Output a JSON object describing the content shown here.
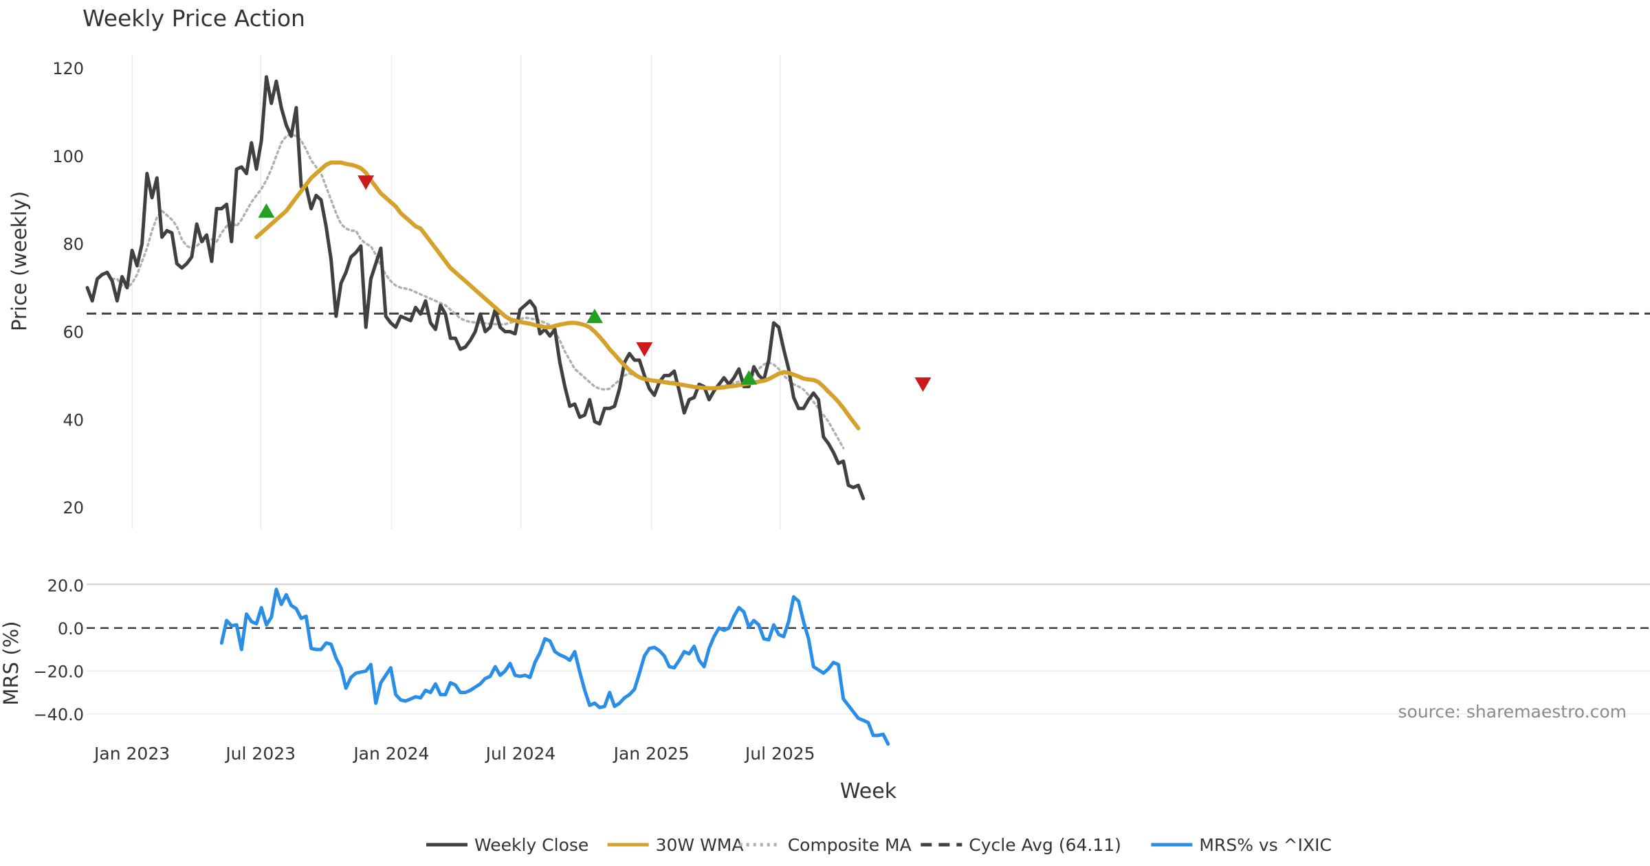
{
  "chart_data": [
    {
      "panel": "price",
      "type": "line",
      "title": "Weekly Price Action",
      "ylabel": "Price (weekly)",
      "xlabel": "Week",
      "ylim": [
        15,
        123
      ],
      "yticks": [
        20,
        40,
        60,
        80,
        100,
        120
      ],
      "grid": "vertical",
      "x_start": "2022-10-30",
      "x_step_days": 7,
      "cycle_avg": 64.11,
      "series": [
        {
          "name": "Weekly Close",
          "color": "#404040",
          "style": "solid",
          "start_week": 0,
          "values": [
            70,
            67,
            72,
            73,
            73.5,
            71.5,
            67,
            72.5,
            70,
            78.5,
            75,
            80,
            96,
            90.5,
            95,
            81.5,
            83,
            82.5,
            75.5,
            74.5,
            75.5,
            77,
            84.5,
            80.5,
            82,
            76,
            88,
            88,
            89,
            80.5,
            97,
            97.5,
            96,
            103,
            97,
            103.5,
            118,
            112,
            117,
            111,
            107,
            104.5,
            111,
            93,
            93,
            88,
            91,
            90,
            84,
            76.5,
            63.5,
            71,
            73.5,
            77,
            78,
            79.5,
            61,
            72,
            75.5,
            79,
            63.5,
            62,
            61,
            63.5,
            63,
            62.5,
            65.5,
            64,
            67,
            62,
            60.5,
            66,
            64,
            58.5,
            58.5,
            56,
            56.5,
            58,
            60,
            64,
            60,
            61,
            65,
            61,
            60,
            60,
            59.5,
            65,
            66,
            67,
            65.5,
            59.5,
            60.5,
            59,
            60.5,
            53,
            47.5,
            43,
            43.5,
            40.5,
            41,
            44.5,
            39.5,
            39,
            42.5,
            42.5,
            43,
            47,
            53,
            55,
            53.5,
            53.5,
            50,
            47,
            45.5,
            48.5,
            50,
            50,
            51,
            46.5,
            41.5,
            44.5,
            45,
            48,
            47.5,
            44.5,
            46.5,
            48,
            49.5,
            48,
            49.5,
            51.5,
            47.5,
            47.5,
            52,
            50,
            49,
            53.5,
            62,
            61,
            56,
            51.5,
            45,
            42.5,
            42.5,
            44.5,
            46,
            44.5,
            36,
            34.5,
            32.5,
            30,
            30.5,
            25,
            24.5,
            25,
            22
          ]
        },
        {
          "name": "30W WMA",
          "color": "#d4a12a",
          "style": "solid",
          "start_week": 34,
          "values": [
            81.5,
            82.5,
            83.5,
            84.5,
            85.5,
            86.5,
            87.5,
            89,
            90.5,
            92,
            93.5,
            95,
            96,
            97,
            98,
            98.5,
            98.5,
            98.5,
            98.2,
            98,
            97.7,
            97.2,
            96.2,
            94.5,
            93,
            91.5,
            90.5,
            89.5,
            88.5,
            87,
            86,
            85,
            84,
            83.5,
            82,
            80.5,
            79,
            77.5,
            76,
            74.5,
            73.5,
            72.5,
            71.5,
            70.5,
            69.5,
            68.5,
            67.5,
            66.5,
            65.5,
            64.5,
            63.5,
            62.8,
            62.5,
            62.2,
            62,
            61.8,
            61.5,
            61.3,
            61,
            61,
            61.3,
            61.6,
            61.8,
            62,
            62,
            61.8,
            61.5,
            61,
            60,
            58.8,
            57.5,
            56,
            54.8,
            53.5,
            52.3,
            51.2,
            50.3,
            49.6,
            49.2,
            49,
            48.8,
            48.7,
            48.5,
            48.3,
            48.2,
            48,
            47.8,
            47.6,
            47.4,
            47.3,
            47.2,
            47.1,
            47.1,
            47.2,
            47.3,
            47.5,
            47.6,
            47.8,
            48,
            48.2,
            48.4,
            48.6,
            48.8,
            49.2,
            49.8,
            50.4,
            50.8,
            50.6,
            50.2,
            49.8,
            49.3,
            49.1,
            49,
            48.5,
            47.5,
            46.3,
            45.2,
            44,
            42.6,
            41,
            39.5,
            38
          ]
        },
        {
          "name": "Composite MA",
          "color": "#b0b0b0",
          "style": "dotted",
          "start_week": 5,
          "values": [
            72,
            72,
            70.5,
            70,
            71,
            73,
            76,
            79,
            83,
            86,
            87.5,
            86.5,
            85.5,
            84,
            81,
            79.5,
            79,
            79.5,
            80.5,
            80.5,
            81,
            80.5,
            82.5,
            84,
            85,
            84,
            85.5,
            87.5,
            89.5,
            91,
            92.5,
            94.5,
            97,
            100,
            103,
            104.5,
            105,
            104.5,
            103.5,
            101.5,
            99,
            97.5,
            96,
            93,
            90,
            87,
            84.5,
            83.5,
            83,
            83,
            81,
            80,
            79.5,
            77.5,
            75,
            73,
            71.5,
            70.5,
            70,
            69.8,
            69.5,
            69,
            68.5,
            68,
            67.5,
            67,
            66.5,
            66,
            65,
            64,
            63,
            62.5,
            62.2,
            62.1,
            62,
            61.9,
            61.8,
            61.7,
            61.6,
            61.7,
            62,
            62.4,
            62.8,
            63.2,
            63,
            62.8,
            62.5,
            62,
            61.5,
            60,
            58,
            55.5,
            53.5,
            51.5,
            50.5,
            49.5,
            48.5,
            47.5,
            47,
            46.8,
            47,
            48,
            49,
            50,
            50.5,
            50,
            49.5,
            49.2,
            49,
            48.8,
            48.7,
            48.7,
            48.6,
            48.5,
            48.2,
            47.8,
            47.5,
            47.3,
            47.2,
            47.1,
            47.1,
            47.2,
            47.4,
            47.7,
            48,
            48.3,
            48.6,
            49,
            49.5,
            50.3,
            51.5,
            52.5,
            53,
            52.5,
            51.5,
            50,
            49,
            48,
            47.5,
            46.8,
            45.5,
            44,
            42.5,
            41,
            39.5,
            37.5,
            35.5,
            33.5
          ]
        }
      ],
      "markers": [
        {
          "type": "buy",
          "week": 36,
          "value": 87.5,
          "color": "#22a022"
        },
        {
          "type": "sell",
          "week": 56,
          "value": 94,
          "color": "#cc1a1a"
        },
        {
          "type": "buy",
          "week": 102,
          "value": 63.5,
          "color": "#22a022"
        },
        {
          "type": "sell",
          "week": 112,
          "value": 56,
          "color": "#cc1a1a"
        },
        {
          "type": "buy",
          "week": 133,
          "value": 49.5,
          "color": "#22a022"
        },
        {
          "type": "sell",
          "week": 168,
          "value": 48,
          "color": "#cc1a1a"
        }
      ],
      "x_tick_labels": [
        {
          "label": "Jan 2023",
          "date": "2023-01-01"
        },
        {
          "label": "Jul 2023",
          "date": "2023-07-01"
        },
        {
          "label": "Jan 2024",
          "date": "2024-01-01"
        },
        {
          "label": "Jul 2024",
          "date": "2024-07-01"
        },
        {
          "label": "Jan 2025",
          "date": "2025-01-01"
        },
        {
          "label": "Jul 2025",
          "date": "2025-07-01"
        }
      ]
    },
    {
      "panel": "mrs",
      "type": "line",
      "ylabel": "MRS (%)",
      "ylim": [
        -50,
        22
      ],
      "yticks": [
        20.0,
        0.0,
        -20.0,
        -40.0
      ],
      "ytick_labels": [
        "20.0",
        "0.0",
        "−20.0",
        "−40.0"
      ],
      "zero_line": 0,
      "series": [
        {
          "name": "MRS% vs ^IXIC",
          "color": "#2b8ee6",
          "style": "solid",
          "start_week": 27,
          "values": [
            -7,
            3.5,
            1,
            1.5,
            -10,
            6.5,
            3,
            2,
            9.5,
            1.5,
            5,
            18,
            11,
            15.5,
            10.5,
            9,
            4.5,
            5.5,
            -9.5,
            -10,
            -10,
            -7,
            -7.5,
            -14,
            -18.5,
            -28,
            -23,
            -21,
            -20.5,
            -20,
            -17,
            -35,
            -25.5,
            -22,
            -18.5,
            -31,
            -33.5,
            -34,
            -33,
            -32,
            -32.5,
            -29,
            -30,
            -26,
            -31,
            -31,
            -25.5,
            -26.5,
            -30,
            -30,
            -29,
            -27.5,
            -26,
            -23.5,
            -22.5,
            -18,
            -22,
            -20,
            -16.5,
            -22,
            -22.5,
            -22,
            -23,
            -16,
            -11.5,
            -5,
            -6,
            -11,
            -12.5,
            -13.5,
            -15,
            -11,
            -20.5,
            -29,
            -36,
            -35,
            -37,
            -36.5,
            -30,
            -36.5,
            -35,
            -32.5,
            -31,
            -28.5,
            -21,
            -13,
            -9.5,
            -9,
            -10.5,
            -13,
            -18,
            -18.5,
            -15,
            -11,
            -12,
            -8.5,
            -15,
            -18,
            -9.5,
            -4,
            0,
            -1,
            0,
            5.5,
            9.5,
            7.5,
            0.5,
            3.5,
            1.5,
            -5,
            -5.5,
            1.5,
            -3,
            -4,
            3,
            14.5,
            12.5,
            3,
            -5,
            -18,
            -19.5,
            -21,
            -19,
            -16,
            -17,
            -33,
            -36,
            -39,
            -42,
            -43,
            -44,
            -50,
            -50,
            -49.5,
            -54
          ]
        }
      ],
      "annotation": "source: sharemaestro.com"
    }
  ],
  "legend": {
    "placement": "bottom-center",
    "items": [
      {
        "label": "Weekly Close",
        "color": "#404040",
        "style": "solid"
      },
      {
        "label": "30W WMA",
        "color": "#d4a12a",
        "style": "solid"
      },
      {
        "label": "Composite MA",
        "color": "#b0b0b0",
        "style": "dotted"
      },
      {
        "label": "Cycle Avg (64.11)",
        "color": "#404040",
        "style": "dashed"
      },
      {
        "label": "MRS% vs ^IXIC",
        "color": "#2b8ee6",
        "style": "solid"
      }
    ]
  }
}
